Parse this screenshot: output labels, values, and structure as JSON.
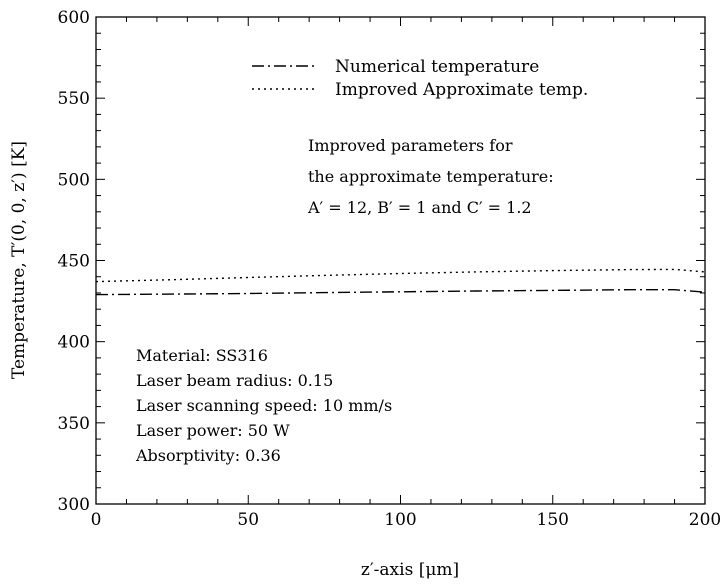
{
  "chart_data": {
    "type": "line",
    "xlabel": "z′-axis [μm]",
    "ylabel": "Temperature, T′(0, 0, z′) [K]",
    "xlim": [
      0,
      200
    ],
    "ylim": [
      300,
      600
    ],
    "x_ticks": [
      0,
      50,
      100,
      150,
      200
    ],
    "y_ticks": [
      300,
      350,
      400,
      450,
      500,
      550,
      600
    ],
    "grid": false,
    "legend_position": "top-center",
    "series": [
      {
        "name": "Numerical temperature",
        "style": "dash-dot",
        "color": "#000000",
        "x": [
          0,
          25,
          50,
          75,
          100,
          125,
          150,
          175,
          190,
          200
        ],
        "y": [
          429,
          429.3,
          429.7,
          430.2,
          430.7,
          431.2,
          431.6,
          432,
          432,
          430.5
        ]
      },
      {
        "name": "Improved Approximate temp.",
        "style": "dotted",
        "color": "#000000",
        "x": [
          0,
          25,
          50,
          75,
          100,
          125,
          150,
          175,
          190,
          200
        ],
        "y": [
          437,
          438.2,
          439.5,
          440.8,
          442,
          443,
          443.8,
          444.4,
          444.5,
          443
        ]
      }
    ],
    "annotations": {
      "params_lines": [
        "Improved parameters for",
        "the approximate temperature:",
        "A′ = 12, B′ = 1 and C′ = 1.2"
      ],
      "material_lines": [
        "Material: SS316",
        "Laser beam radius: 0.15",
        "Laser scanning speed: 10 mm/s",
        "Laser power: 50 W",
        "Absorptivity: 0.36"
      ]
    }
  }
}
